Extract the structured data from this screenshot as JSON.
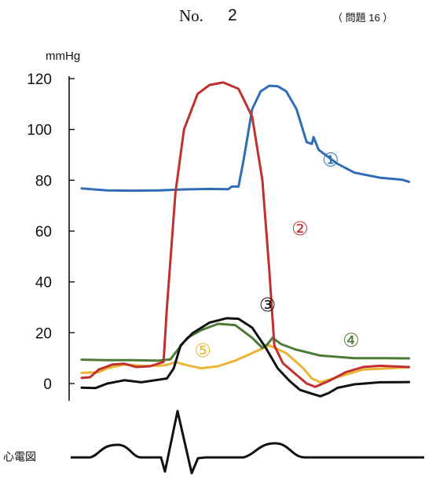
{
  "header": {
    "no_label": "No.",
    "page_number": "2",
    "question": "（ 問題 16 ）"
  },
  "chart_data": {
    "type": "line",
    "title": "",
    "xlabel": "",
    "ylabel": "mmHg",
    "ylim": [
      0,
      120
    ],
    "yticks": [
      "0",
      "20",
      "40",
      "60",
      "80",
      "100",
      "120"
    ],
    "ecg_label": "心電図",
    "grid": false,
    "series": [
      {
        "name": "①",
        "color": "#2f6db5",
        "points": [
          [
            0,
            76.8
          ],
          [
            15,
            76.0
          ],
          [
            30,
            75.9
          ],
          [
            45,
            76.0
          ],
          [
            60,
            76.4
          ],
          [
            75,
            76.6
          ],
          [
            86,
            76.5
          ],
          [
            88,
            77.5
          ],
          [
            92,
            77.5
          ],
          [
            95,
            88
          ],
          [
            100,
            108
          ],
          [
            105,
            115
          ],
          [
            110,
            117.2
          ],
          [
            115,
            117
          ],
          [
            120,
            115
          ],
          [
            126,
            108
          ],
          [
            132,
            95
          ],
          [
            135,
            94.3
          ],
          [
            136,
            97
          ],
          [
            139,
            92
          ],
          [
            145,
            89
          ],
          [
            150,
            86.5
          ],
          [
            160,
            83
          ],
          [
            175,
            81
          ],
          [
            188,
            80.2
          ],
          [
            192,
            79.4
          ]
        ],
        "label_at": [
          146,
          88
        ]
      },
      {
        "name": "②",
        "color": "#c0302e",
        "points": [
          [
            0,
            2.2
          ],
          [
            5,
            2.5
          ],
          [
            10,
            5.5
          ],
          [
            18,
            7.5
          ],
          [
            25,
            7.8
          ],
          [
            32,
            6.5
          ],
          [
            40,
            6.8
          ],
          [
            48,
            8.5
          ],
          [
            50,
            30
          ],
          [
            55,
            75
          ],
          [
            60,
            100
          ],
          [
            68,
            114
          ],
          [
            75,
            117.5
          ],
          [
            83,
            118.5
          ],
          [
            92,
            116
          ],
          [
            100,
            105
          ],
          [
            106,
            80
          ],
          [
            110,
            45
          ],
          [
            113,
            15
          ],
          [
            118,
            8
          ],
          [
            125,
            4
          ],
          [
            132,
            0
          ],
          [
            137,
            -1.3
          ],
          [
            145,
            1
          ],
          [
            155,
            4.5
          ],
          [
            165,
            6.5
          ],
          [
            175,
            7
          ],
          [
            192,
            6.5
          ]
        ],
        "label_at": [
          128,
          61
        ]
      },
      {
        "name": "③",
        "color": "#111111",
        "points": [
          [
            0,
            -1.6
          ],
          [
            8,
            -1.8
          ],
          [
            15,
            0
          ],
          [
            25,
            1.3
          ],
          [
            35,
            0.5
          ],
          [
            45,
            1.5
          ],
          [
            50,
            2
          ],
          [
            54,
            6
          ],
          [
            58,
            15
          ],
          [
            65,
            19.8
          ],
          [
            75,
            24
          ],
          [
            85,
            25.7
          ],
          [
            92,
            25.5
          ],
          [
            100,
            22
          ],
          [
            108,
            14
          ],
          [
            115,
            6
          ],
          [
            122,
            1
          ],
          [
            128,
            -2.5
          ],
          [
            135,
            -4
          ],
          [
            140,
            -5
          ],
          [
            145,
            -3.7
          ],
          [
            150,
            -1.7
          ],
          [
            160,
            -0.3
          ],
          [
            175,
            0.5
          ],
          [
            192,
            0.6
          ]
        ],
        "label_at": [
          109,
          31
        ]
      },
      {
        "name": "④",
        "color": "#4d7a35",
        "points": [
          [
            0,
            9.4
          ],
          [
            15,
            9.2
          ],
          [
            30,
            9.2
          ],
          [
            45,
            9.0
          ],
          [
            52,
            9.5
          ],
          [
            56,
            13
          ],
          [
            62,
            18
          ],
          [
            70,
            21
          ],
          [
            80,
            23.5
          ],
          [
            90,
            23
          ],
          [
            100,
            18
          ],
          [
            106,
            14
          ],
          [
            109,
            15.5
          ],
          [
            112,
            18
          ],
          [
            117,
            15.5
          ],
          [
            125,
            13.5
          ],
          [
            140,
            11
          ],
          [
            160,
            10
          ],
          [
            180,
            10
          ],
          [
            192,
            9.9
          ]
        ],
        "label_at": [
          158,
          17
        ]
      },
      {
        "name": "⑤",
        "color": "#eab535",
        "points": [
          [
            0,
            4.2
          ],
          [
            10,
            4.5
          ],
          [
            15,
            6
          ],
          [
            25,
            7.5
          ],
          [
            35,
            7
          ],
          [
            45,
            7
          ],
          [
            50,
            7.3
          ],
          [
            55,
            8.5
          ],
          [
            60,
            7.5
          ],
          [
            70,
            6
          ],
          [
            80,
            6.8
          ],
          [
            90,
            9
          ],
          [
            100,
            12
          ],
          [
            110,
            15
          ],
          [
            120,
            12
          ],
          [
            130,
            6
          ],
          [
            135,
            2
          ],
          [
            140,
            0.5
          ],
          [
            150,
            2.5
          ],
          [
            165,
            5.5
          ],
          [
            180,
            6
          ],
          [
            192,
            6.4
          ]
        ],
        "label_at": [
          71,
          13
        ]
      }
    ]
  }
}
